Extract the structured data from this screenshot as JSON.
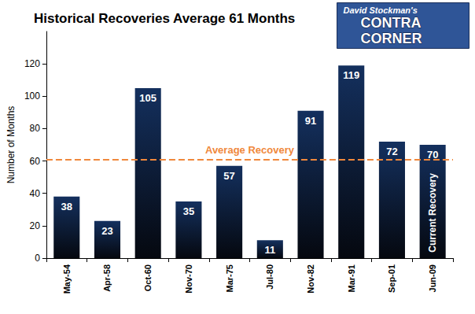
{
  "chart_data": {
    "type": "bar",
    "title": "Historical Recoveries Average 61 Months",
    "y_label": "Number of Months",
    "categories": [
      "May-54",
      "Apr-58",
      "Oct-60",
      "Nov-70",
      "Mar-75",
      "Jul-80",
      "Nov-82",
      "Mar-91",
      "Sep-01",
      "Jun-09"
    ],
    "values": [
      38,
      23,
      105,
      35,
      57,
      11,
      91,
      119,
      72,
      70
    ],
    "color": "#14305e",
    "ylim": [
      0,
      140
    ],
    "yticks": [
      0,
      20,
      40,
      60,
      80,
      100,
      120
    ],
    "grid": false,
    "data_labels": true,
    "annotations": [
      {
        "text": "Average Recovery",
        "y": 61,
        "color": "#f0883c",
        "line_style": "dashed"
      },
      {
        "text": "Current Recovery",
        "category": "Jun-09"
      }
    ],
    "logo": [
      "David Stockman's",
      "CONTRA",
      "CORNER"
    ]
  }
}
